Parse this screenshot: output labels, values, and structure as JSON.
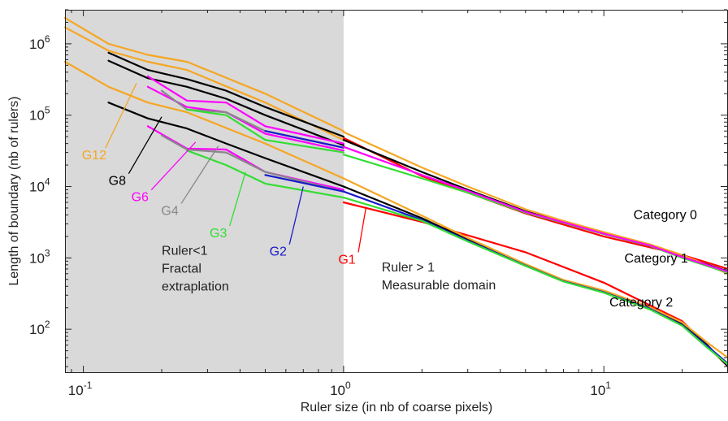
{
  "chart_data": {
    "type": "line",
    "title": "",
    "xlabel": "Ruler size (in nb of coarse pixels)",
    "ylabel": "Length of boundary (nb of rulers)",
    "xscale": "log",
    "yscale": "log",
    "xlim": [
      0.085,
      30
    ],
    "ylim": [
      25,
      3000000
    ],
    "grid": false,
    "x_ticks": [
      {
        "v": 0.1,
        "base": "10",
        "exp": "-1"
      },
      {
        "v": 1,
        "base": "10",
        "exp": "0"
      },
      {
        "v": 10,
        "base": "10",
        "exp": "1"
      }
    ],
    "y_ticks": [
      {
        "v": 100,
        "base": "10",
        "exp": "2"
      },
      {
        "v": 1000,
        "base": "10",
        "exp": "3"
      },
      {
        "v": 10000,
        "base": "10",
        "exp": "4"
      },
      {
        "v": 100000,
        "base": "10",
        "exp": "5"
      },
      {
        "v": 1000000,
        "base": "10",
        "exp": "6"
      }
    ],
    "shaded_region": {
      "x": [
        0.085,
        1
      ],
      "color": "#d9d9d9"
    },
    "series": [
      {
        "name": "G12",
        "color": "#f5a623",
        "x": [
          0.085,
          0.125,
          0.177,
          0.25,
          0.5,
          1
        ],
        "y": [
          2300000,
          1000000,
          700000,
          560000,
          200000,
          60000
        ]
      },
      {
        "name": "G12",
        "color": "#f5a623",
        "x": [
          0.085,
          0.125,
          0.177,
          0.25,
          0.5,
          1
        ],
        "y": [
          1700000,
          800000,
          560000,
          430000,
          150000,
          45000
        ]
      },
      {
        "name": "G12",
        "color": "#f5a623",
        "x": [
          0.085,
          0.125,
          0.177,
          0.25,
          0.5,
          1
        ],
        "y": [
          560000,
          250000,
          150000,
          110000,
          40000,
          13000
        ]
      },
      {
        "name": "G8",
        "color": "#000000",
        "x": [
          0.125,
          0.177,
          0.25,
          0.354,
          0.5,
          1
        ],
        "y": [
          750000,
          430000,
          320000,
          220000,
          130000,
          50000
        ]
      },
      {
        "name": "G8",
        "color": "#000000",
        "x": [
          0.125,
          0.177,
          0.25,
          0.354,
          0.5,
          1
        ],
        "y": [
          580000,
          330000,
          250000,
          170000,
          100000,
          38000
        ]
      },
      {
        "name": "G8",
        "color": "#000000",
        "x": [
          0.125,
          0.177,
          0.25,
          0.354,
          0.5,
          1
        ],
        "y": [
          150000,
          90000,
          65000,
          40000,
          25000,
          10000
        ]
      },
      {
        "name": "G6",
        "color": "#ff00ff",
        "x": [
          0.177,
          0.25,
          0.354,
          0.5,
          1
        ],
        "y": [
          350000,
          160000,
          150000,
          70000,
          40000
        ]
      },
      {
        "name": "G6",
        "color": "#ff00ff",
        "x": [
          0.177,
          0.25,
          0.354,
          0.5,
          1
        ],
        "y": [
          250000,
          130000,
          110000,
          55000,
          32000
        ]
      },
      {
        "name": "G6",
        "color": "#ff00ff",
        "x": [
          0.177,
          0.25,
          0.354,
          0.5,
          1
        ],
        "y": [
          70000,
          34000,
          33000,
          16000,
          9000
        ]
      },
      {
        "name": "G4",
        "color": "#888888",
        "x": [
          0.2,
          0.25,
          0.354,
          0.5,
          1
        ],
        "y": [
          220000,
          120000,
          110000,
          60000,
          35000
        ]
      },
      {
        "name": "G4",
        "color": "#888888",
        "x": [
          0.2,
          0.25,
          0.354,
          0.5,
          1
        ],
        "y": [
          52000,
          33000,
          30000,
          16000,
          8500
        ]
      },
      {
        "name": "G3",
        "color": "#33dd33",
        "x": [
          0.25,
          0.354,
          0.5,
          1
        ],
        "y": [
          120000,
          100000,
          45000,
          30000
        ]
      },
      {
        "name": "G3",
        "color": "#33dd33",
        "x": [
          0.25,
          0.354,
          0.5,
          1
        ],
        "y": [
          32000,
          20000,
          11000,
          7000
        ]
      },
      {
        "name": "G2",
        "color": "#1a1acc",
        "x": [
          0.5,
          1
        ],
        "y": [
          60000,
          35000
        ]
      },
      {
        "name": "G2",
        "color": "#1a1acc",
        "x": [
          0.5,
          1
        ],
        "y": [
          14500,
          8500
        ]
      },
      {
        "name": "G1",
        "color": "#ff0000",
        "x": [
          1,
          2,
          5,
          10,
          20,
          30
        ],
        "y": [
          48000,
          14000,
          4200,
          2000,
          1100,
          700
        ]
      },
      {
        "name": "G1",
        "color": "#ff0000",
        "x": [
          1,
          2,
          5,
          10,
          20,
          30
        ],
        "y": [
          6000,
          3200,
          1200,
          450,
          130,
          30
        ]
      },
      {
        "name": "Category 0",
        "color": "#000000",
        "x": [
          1,
          2,
          3,
          5,
          7,
          10,
          15,
          20,
          30
        ],
        "y": [
          45000,
          16000,
          9000,
          4500,
          3200,
          2200,
          1500,
          1050,
          650
        ]
      },
      {
        "name": "Category 0",
        "color": "#f5a623",
        "x": [
          1,
          2,
          3,
          5,
          7,
          10,
          15,
          20,
          30
        ],
        "y": [
          58000,
          18500,
          10000,
          4800,
          3300,
          2300,
          1550,
          1100,
          600
        ]
      },
      {
        "name": "Category 0",
        "color": "#33dd33",
        "x": [
          1,
          2,
          3,
          5,
          7,
          10,
          15,
          20,
          30
        ],
        "y": [
          28000,
          13000,
          8200,
          4300,
          3100,
          2150,
          1480,
          1000,
          620
        ]
      },
      {
        "name": "Category 0",
        "color": "#ff00ff",
        "x": [
          1,
          2,
          3,
          5,
          7,
          10,
          15,
          20,
          30
        ],
        "y": [
          36000,
          14500,
          8700,
          4400,
          3150,
          2180,
          1500,
          1030,
          640
        ]
      },
      {
        "name": "Category 2",
        "color": "#000000",
        "x": [
          1,
          2,
          3,
          5,
          7,
          10,
          15,
          20,
          25,
          30
        ],
        "y": [
          10000,
          3600,
          1800,
          800,
          480,
          340,
          200,
          120,
          60,
          30
        ]
      },
      {
        "name": "Category 2",
        "color": "#f5a623",
        "x": [
          1,
          2,
          3,
          5,
          7,
          10,
          15,
          20,
          25,
          30
        ],
        "y": [
          13000,
          3900,
          1900,
          820,
          490,
          350,
          205,
          125,
          65,
          40
        ]
      },
      {
        "name": "Category 2",
        "color": "#1a1acc",
        "x": [
          1,
          2,
          3,
          5,
          7,
          10,
          15,
          20,
          25,
          30
        ],
        "y": [
          8500,
          3400,
          1750,
          780,
          470,
          330,
          195,
          115,
          58,
          33
        ]
      },
      {
        "name": "Category 2",
        "color": "#33dd33",
        "x": [
          1,
          2,
          3,
          5,
          7,
          10,
          15,
          20,
          25,
          30
        ],
        "y": [
          7000,
          3300,
          1700,
          770,
          465,
          325,
          190,
          112,
          55,
          32
        ]
      }
    ],
    "annotations": [
      {
        "id": "g12",
        "text": "G12",
        "color": "#f5a623",
        "label_at": [
          0.11,
          24000
        ],
        "point_to": [
          0.16,
          280000
        ]
      },
      {
        "id": "g8",
        "text": "G8",
        "color": "#000000",
        "label_at": [
          0.135,
          10500
        ],
        "point_to": [
          0.2,
          95000
        ]
      },
      {
        "id": "g6",
        "text": "G6",
        "color": "#ff00ff",
        "label_at": [
          0.165,
          6200
        ],
        "point_to": [
          0.27,
          42000
        ]
      },
      {
        "id": "g4",
        "text": "G4",
        "color": "#888888",
        "label_at": [
          0.215,
          4000
        ],
        "point_to": [
          0.33,
          37000
        ]
      },
      {
        "id": "g3",
        "text": "G3",
        "color": "#33dd33",
        "label_at": [
          0.33,
          1950
        ],
        "point_to": [
          0.42,
          16000
        ]
      },
      {
        "id": "g2",
        "text": "G2",
        "color": "#1a1acc",
        "label_at": [
          0.56,
          1070
        ],
        "point_to": [
          0.7,
          10000
        ]
      },
      {
        "id": "g1",
        "text": "G1",
        "color": "#ff0000",
        "label_at": [
          1.03,
          830
        ],
        "point_to": [
          1.22,
          5200
        ]
      },
      {
        "id": "cat0",
        "text": "Category 0",
        "color": "#000000",
        "label_at": [
          13,
          3500
        ]
      },
      {
        "id": "cat1",
        "text": "Category 1",
        "color": "#000000",
        "label_at": [
          12,
          860
        ]
      },
      {
        "id": "cat2",
        "text": "Category 2",
        "color": "#000000",
        "label_at": [
          10.5,
          210
        ]
      }
    ],
    "region_labels": [
      {
        "id": "ruler-lt-1",
        "lines": [
          "Ruler<1",
          "Fractal",
          "extraplation"
        ],
        "at": [
          0.2,
          1100
        ]
      },
      {
        "id": "ruler-gt-1",
        "lines": [
          "Ruler > 1",
          "Measurable domain"
        ],
        "at": [
          1.4,
          650
        ]
      }
    ]
  }
}
